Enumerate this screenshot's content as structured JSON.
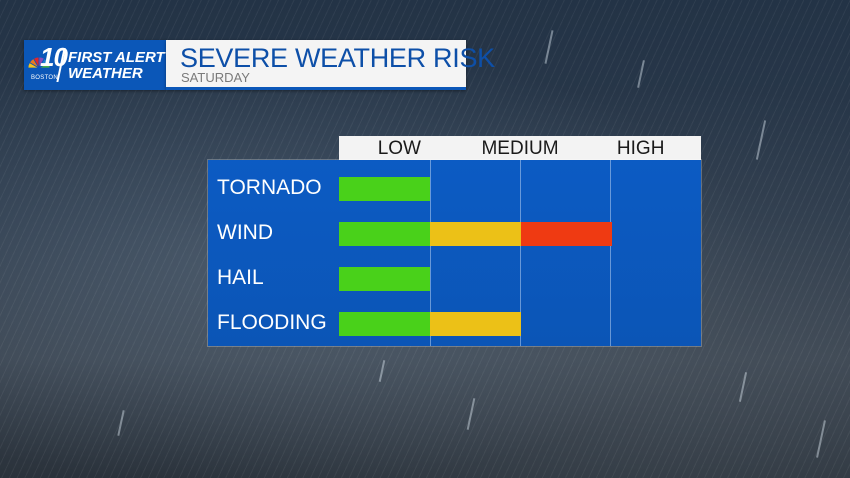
{
  "branding": {
    "channel": "10",
    "city": "BOSTON",
    "line1": "FIRST ALERT",
    "line2": "WEATHER",
    "colors": {
      "brand_blue": "#0b57b8",
      "peacock": [
        "#f6c21a",
        "#ea7a1e",
        "#e0262b",
        "#8a4bb5",
        "#1e7fd0",
        "#4bb04a"
      ]
    }
  },
  "header": {
    "title": "SEVERE WEATHER RISK",
    "subtitle": "SATURDAY"
  },
  "levels": [
    "LOW",
    "MEDIUM",
    "HIGH"
  ],
  "risk_colors": {
    "low": "#49d11a",
    "medium": "#ecc117",
    "high": "#ef3a12"
  },
  "hazards": [
    {
      "name": "TORNADO",
      "segments": [
        "low"
      ]
    },
    {
      "name": "WIND",
      "segments": [
        "low",
        "medium",
        "high"
      ]
    },
    {
      "name": "HAIL",
      "segments": [
        "low"
      ]
    },
    {
      "name": "FLOODING",
      "segments": [
        "low",
        "medium"
      ]
    }
  ]
}
